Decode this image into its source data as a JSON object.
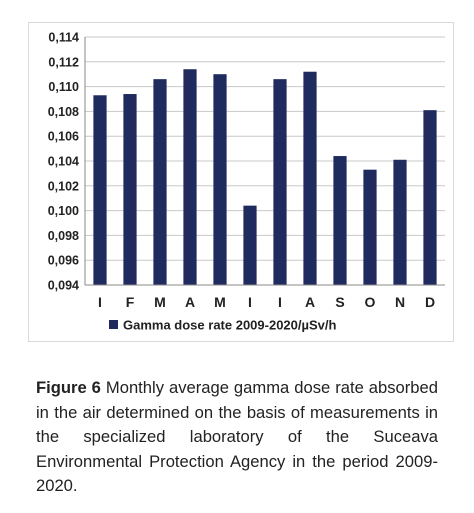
{
  "chart_data": {
    "type": "bar",
    "categories": [
      "I",
      "F",
      "M",
      "A",
      "M",
      "I",
      "I",
      "A",
      "S",
      "O",
      "N",
      "D"
    ],
    "series": [
      {
        "name": "Gamma dose rate 2009-2020/µSv/h",
        "values": [
          0.1093,
          0.1094,
          0.1106,
          0.1114,
          0.111,
          0.1004,
          0.1106,
          0.1112,
          0.1044,
          0.1033,
          0.1041,
          0.1081
        ]
      }
    ],
    "ylim": [
      0.094,
      0.114
    ],
    "yticks": [
      "0,094",
      "0,096",
      "0,098",
      "0,100",
      "0,102",
      "0,104",
      "0,106",
      "0,108",
      "0,110",
      "0,112",
      "0,114"
    ],
    "grid": true,
    "legend_position": "bottom",
    "bar_color": "#1f2a5e"
  },
  "caption": {
    "label": "Figure 6",
    "text": "Monthly average gamma dose rate absorbed in the air determined on the basis of measurements in the specialized laboratory of the Suceava Environmental Protection Agency in the period 2009-2020."
  }
}
